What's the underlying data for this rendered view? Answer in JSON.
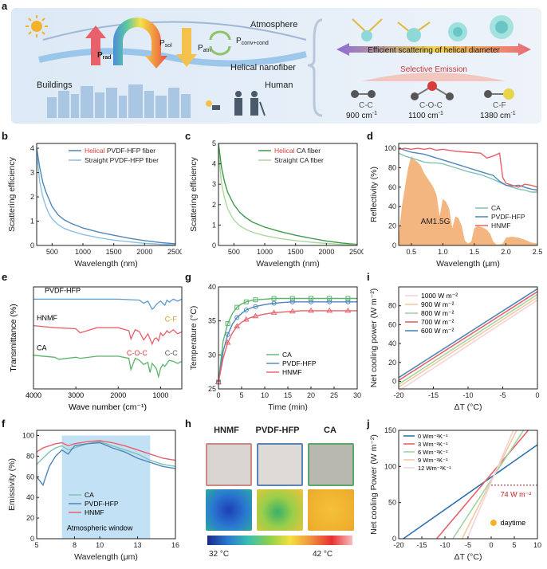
{
  "panel_labels": {
    "a": "a",
    "b": "b",
    "c": "c",
    "d": "d",
    "e": "e",
    "f": "f",
    "g": "g",
    "h": "h",
    "i": "i",
    "j": "j"
  },
  "panel_a": {
    "atmosphere": "Atmosphere",
    "p_rad": "P",
    "p_rad_sub": "rad",
    "p_sol": "P",
    "p_sol_sub": "sol",
    "p_atm": "P",
    "p_atm_sub": "atm",
    "p_conv": "P",
    "p_conv_sub": "conv+cond",
    "helical_nanofiber": "Helical nanofiber",
    "buildings": "Buildings",
    "human": "Human",
    "efficient_scattering": "Efficient scattering of helical diameter",
    "selective_emission": "Selective Emission",
    "bond_cc": "C-C",
    "bond_coc": "C-O-C",
    "bond_cf": "C-F",
    "wn_cc": "900 cm",
    "wn_coc": "1100 cm",
    "wn_cf": "1380 cm",
    "wn_sup": "-1",
    "colors": {
      "bg": "#e8f0f8",
      "arrow_red": "#e8606a",
      "arrow_yellow": "#f4c24c",
      "green": "#8fc36a",
      "text": "#1c1c1c"
    }
  },
  "chart_b": {
    "type": "line",
    "xlabel": "Wavelength (nm)",
    "ylabel": "Scattering efficiency",
    "xticks": [
      "500",
      "1000",
      "1500",
      "2000",
      "2500"
    ],
    "yticks": [
      "0",
      "1",
      "2",
      "3",
      "4"
    ],
    "xlim": [
      250,
      2500
    ],
    "ylim": [
      0,
      4.2
    ],
    "legend": [
      {
        "prefix": "Helical",
        "text": " PVDF-HFP fiber",
        "color": "#4e86b8"
      },
      {
        "prefix": "",
        "text": "Straight PVDF-HFP fiber",
        "color": "#8dbfe0"
      }
    ],
    "series": [
      {
        "name": "Helical PVDF-HFP fiber",
        "color": "#4e86b8",
        "x": [
          250,
          300,
          350,
          400,
          450,
          500,
          600,
          700,
          800,
          1000,
          1250,
          1500,
          1750,
          2000,
          2250,
          2500
        ],
        "y": [
          4.0,
          3.2,
          2.6,
          2.2,
          1.9,
          1.6,
          1.25,
          1.05,
          0.92,
          0.72,
          0.55,
          0.42,
          0.3,
          0.2,
          0.12,
          0.07
        ]
      },
      {
        "name": "Straight PVDF-HFP fiber",
        "color": "#8dbfe0",
        "x": [
          250,
          300,
          350,
          400,
          450,
          500,
          600,
          700,
          800,
          1000,
          1250,
          1500,
          1750,
          2000,
          2250,
          2500
        ],
        "y": [
          3.8,
          2.6,
          2.0,
          1.6,
          1.3,
          1.1,
          0.85,
          0.7,
          0.6,
          0.45,
          0.32,
          0.22,
          0.15,
          0.09,
          0.05,
          0.03
        ]
      }
    ]
  },
  "chart_c": {
    "type": "line",
    "xlabel": "Wavelength (nm)",
    "ylabel": "Scattering efficiency",
    "xticks": [
      "500",
      "1000",
      "1500",
      "2000",
      "2500"
    ],
    "yticks": [
      "0",
      "1",
      "2",
      "3",
      "4",
      "5"
    ],
    "xlim": [
      250,
      2500
    ],
    "ylim": [
      0,
      5
    ],
    "legend": [
      {
        "prefix": "Helical",
        "text": " CA fiber",
        "color": "#3d9a4a"
      },
      {
        "prefix": "",
        "text": "Straight CA fiber",
        "color": "#a8d89a"
      }
    ],
    "series": [
      {
        "name": "Helical CA fiber",
        "color": "#3d9a4a",
        "x": [
          250,
          300,
          350,
          400,
          450,
          500,
          600,
          700,
          800,
          1000,
          1250,
          1500,
          1750,
          2000,
          2250,
          2500
        ],
        "y": [
          5.0,
          3.8,
          3.1,
          2.6,
          2.3,
          2.0,
          1.6,
          1.35,
          1.15,
          0.9,
          0.68,
          0.5,
          0.35,
          0.22,
          0.12,
          0.05
        ]
      },
      {
        "name": "Straight CA fiber",
        "color": "#a8d89a",
        "x": [
          250,
          300,
          350,
          400,
          450,
          500,
          600,
          700,
          800,
          1000,
          1250,
          1500,
          1750,
          2000,
          2250,
          2500
        ],
        "y": [
          4.6,
          3.0,
          2.3,
          1.8,
          1.5,
          1.25,
          0.95,
          0.78,
          0.65,
          0.48,
          0.34,
          0.24,
          0.16,
          0.1,
          0.05,
          0.02
        ]
      }
    ]
  },
  "chart_d": {
    "type": "line",
    "xlabel": "Wavelength (μm)",
    "ylabel": "Reflectivity (%)",
    "xticks": [
      "0.5",
      "1.0",
      "1.5",
      "2.0",
      "2.5"
    ],
    "yticks": [
      "0",
      "20",
      "40",
      "60",
      "80",
      "100"
    ],
    "xlim": [
      0.3,
      2.5
    ],
    "ylim": [
      0,
      105
    ],
    "annotation": "AM1.5G",
    "legend": [
      "CA",
      "PVDF-HFP",
      "HNMF"
    ],
    "solar_color": "#f2a96a",
    "solar": {
      "x": [
        0.3,
        0.35,
        0.4,
        0.45,
        0.5,
        0.55,
        0.6,
        0.65,
        0.7,
        0.75,
        0.8,
        0.85,
        0.9,
        0.95,
        1.0,
        1.05,
        1.1,
        1.15,
        1.2,
        1.25,
        1.3,
        1.35,
        1.4,
        1.45,
        1.5,
        1.55,
        1.6,
        1.65,
        1.7,
        1.75,
        1.8,
        1.85,
        1.9,
        1.95,
        2.0,
        2.1,
        2.2,
        2.3,
        2.4,
        2.5
      ],
      "y": [
        10,
        40,
        60,
        80,
        92,
        88,
        86,
        82,
        75,
        70,
        65,
        60,
        52,
        30,
        48,
        45,
        38,
        18,
        30,
        28,
        20,
        5,
        2,
        4,
        18,
        20,
        19,
        18,
        16,
        12,
        4,
        1,
        1,
        2,
        8,
        9,
        8,
        6,
        3,
        2
      ]
    },
    "series": [
      {
        "name": "CA",
        "color": "#7fc2b7",
        "x": [
          0.3,
          0.4,
          0.5,
          0.6,
          0.7,
          0.8,
          0.9,
          1.0,
          1.2,
          1.4,
          1.6,
          1.8,
          1.9,
          2.0,
          2.1,
          2.2,
          2.3,
          2.4,
          2.5
        ],
        "y": [
          95,
          92,
          90,
          88,
          86,
          85,
          85,
          84,
          80,
          76,
          73,
          68,
          65,
          62,
          60,
          58,
          57,
          55,
          55
        ]
      },
      {
        "name": "PVDF-HFP",
        "color": "#4e86b8",
        "x": [
          0.3,
          0.4,
          0.5,
          0.6,
          0.7,
          0.8,
          0.9,
          1.0,
          1.2,
          1.4,
          1.6,
          1.8,
          1.9,
          2.0,
          2.1,
          2.2,
          2.3,
          2.4,
          2.5
        ],
        "y": [
          100,
          98,
          96,
          95,
          94,
          92,
          90,
          88,
          84,
          80,
          76,
          72,
          66,
          62,
          61,
          62,
          60,
          58,
          57
        ]
      },
      {
        "name": "HNMF",
        "color": "#e8606a",
        "x": [
          0.3,
          0.4,
          0.5,
          0.6,
          0.7,
          0.8,
          0.9,
          1.0,
          1.2,
          1.4,
          1.6,
          1.7,
          1.8,
          1.9,
          1.95,
          2.0,
          2.1,
          2.2,
          2.3,
          2.4,
          2.5
        ],
        "y": [
          99,
          100,
          99,
          100,
          99,
          100,
          98,
          99,
          97,
          96,
          95,
          90,
          92,
          95,
          70,
          64,
          62,
          60,
          63,
          62,
          60
        ]
      }
    ]
  },
  "chart_e": {
    "type": "line",
    "xlabel": "Wave number (cm⁻¹)",
    "ylabel": "Transmittance (%)",
    "xticks": [
      "4000",
      "3000",
      "2000",
      "1000"
    ],
    "labels": {
      "pvdf": "PVDF-HFP",
      "hnmf": "HNMF",
      "ca": "CA",
      "cf": "C-F",
      "coc": "C-O-C",
      "cc": "C-C"
    },
    "series": [
      {
        "name": "PVDF-HFP",
        "color": "#5b9bd0",
        "x": [
          4000,
          3500,
          3000,
          2500,
          2000,
          1500,
          1400,
          1300,
          1200,
          1150,
          1100,
          1000,
          900,
          880,
          850,
          800,
          700,
          600,
          500
        ],
        "y": [
          0.88,
          0.88,
          0.88,
          0.88,
          0.88,
          0.87,
          0.84,
          0.86,
          0.78,
          0.8,
          0.83,
          0.86,
          0.82,
          0.84,
          0.87,
          0.85,
          0.88,
          0.86,
          0.88
        ]
      },
      {
        "name": "HNMF",
        "color": "#e8606a",
        "x": [
          4000,
          3500,
          3000,
          2900,
          2500,
          2000,
          1750,
          1700,
          1600,
          1500,
          1400,
          1300,
          1200,
          1150,
          1100,
          1050,
          1000,
          950,
          900,
          850,
          800,
          700,
          600,
          500
        ],
        "y": [
          0.62,
          0.6,
          0.59,
          0.55,
          0.6,
          0.6,
          0.57,
          0.49,
          0.58,
          0.56,
          0.48,
          0.54,
          0.44,
          0.49,
          0.5,
          0.47,
          0.55,
          0.52,
          0.54,
          0.57,
          0.55,
          0.58,
          0.54,
          0.56
        ]
      },
      {
        "name": "CA",
        "color": "#5ab46c",
        "x": [
          4000,
          3500,
          3400,
          3000,
          2900,
          2500,
          2000,
          1750,
          1700,
          1600,
          1500,
          1400,
          1300,
          1250,
          1200,
          1100,
          1050,
          1000,
          950,
          900,
          800,
          700,
          600,
          500
        ],
        "y": [
          0.33,
          0.31,
          0.29,
          0.31,
          0.3,
          0.32,
          0.32,
          0.3,
          0.19,
          0.3,
          0.28,
          0.24,
          0.26,
          0.16,
          0.25,
          0.2,
          0.12,
          0.2,
          0.24,
          0.22,
          0.28,
          0.27,
          0.25,
          0.27
        ]
      }
    ]
  },
  "chart_f": {
    "type": "line",
    "xlabel": "Wavelength (μm)",
    "ylabel": "Emissivity (%)",
    "xticks": [
      "5",
      "8",
      "10",
      "13",
      "16"
    ],
    "yticks": [
      "0",
      "20",
      "40",
      "60",
      "80",
      "100"
    ],
    "xlim": [
      5,
      16
    ],
    "ylim": [
      0,
      105
    ],
    "annotation": "Atmospheric window",
    "legend": [
      "CA",
      "PVDF-HFP",
      "HNMF"
    ],
    "series": [
      {
        "name": "CA",
        "color": "#7fc2b7",
        "x": [
          5,
          5.5,
          6,
          6.5,
          7,
          7.5,
          8,
          9,
          10,
          11,
          12,
          13,
          14,
          15,
          16
        ],
        "y": [
          72,
          78,
          84,
          88,
          90,
          86,
          88,
          92,
          94,
          90,
          86,
          82,
          76,
          72,
          70
        ]
      },
      {
        "name": "PVDF-HFP",
        "color": "#4e86b8",
        "x": [
          5,
          5.5,
          6,
          6.5,
          7,
          7.5,
          8,
          9,
          10,
          11,
          12,
          13,
          14,
          15,
          16
        ],
        "y": [
          60,
          52,
          70,
          80,
          86,
          82,
          90,
          92,
          93,
          88,
          84,
          78,
          74,
          70,
          68
        ]
      },
      {
        "name": "HNMF",
        "color": "#e8606a",
        "x": [
          5,
          5.5,
          6,
          6.5,
          7,
          7.5,
          8,
          9,
          10,
          11,
          12,
          13,
          14,
          15,
          16
        ],
        "y": [
          84,
          88,
          90,
          92,
          93,
          90,
          92,
          94,
          95,
          93,
          90,
          86,
          82,
          78,
          76
        ]
      }
    ]
  },
  "chart_g": {
    "type": "line",
    "xlabel": "Time (min)",
    "ylabel": "Temperature (°C)",
    "xticks": [
      "0",
      "5",
      "10",
      "15",
      "20",
      "25",
      "30"
    ],
    "yticks": [
      "25",
      "30",
      "35",
      "40"
    ],
    "xlim": [
      0,
      30
    ],
    "ylim": [
      25,
      40
    ],
    "legend": [
      "CA",
      "PVDF-HFP",
      "HNMF"
    ],
    "series": [
      {
        "name": "CA",
        "color": "#5ab46c",
        "x": [
          0,
          1,
          2,
          3,
          4,
          5,
          6,
          7,
          8,
          10,
          12,
          14,
          16,
          18,
          20,
          22,
          24,
          26,
          28,
          30
        ],
        "y": [
          26,
          32,
          34.6,
          36.1,
          37,
          37.5,
          37.8,
          38,
          38.1,
          38.2,
          38.3,
          38.3,
          38.3,
          38.3,
          38.3,
          38.3,
          38.3,
          38.3,
          38.3,
          38.3
        ]
      },
      {
        "name": "PVDF-HFP",
        "color": "#4e86b8",
        "x": [
          0,
          1,
          2,
          3,
          4,
          5,
          6,
          7,
          8,
          10,
          12,
          14,
          16,
          18,
          20,
          22,
          24,
          26,
          28,
          30
        ],
        "y": [
          26,
          30.5,
          33,
          34.5,
          35.5,
          36.1,
          36.6,
          36.9,
          37.1,
          37.4,
          37.6,
          37.7,
          37.8,
          37.8,
          37.8,
          37.8,
          37.8,
          37.8,
          37.8,
          37.8
        ]
      },
      {
        "name": "HNMF",
        "color": "#e8606a",
        "x": [
          0,
          1,
          2,
          3,
          4,
          5,
          6,
          7,
          8,
          10,
          12,
          14,
          16,
          18,
          20,
          22,
          24,
          26,
          28,
          30
        ],
        "y": [
          26,
          29.5,
          31.8,
          33.2,
          34.2,
          34.8,
          35.2,
          35.5,
          35.7,
          36,
          36.2,
          36.3,
          36.4,
          36.5,
          36.5,
          36.5,
          36.5,
          36.5,
          36.5,
          36.5
        ]
      }
    ]
  },
  "panel_h": {
    "labels": [
      "HNMF",
      "PVDF-HFP",
      "CA"
    ],
    "scale_min": "32 °C",
    "scale_max": "42 °C"
  },
  "chart_i": {
    "type": "line",
    "xlabel": "ΔT (°C)",
    "ylabel": "Net cooling power (W m⁻²)",
    "xticks": [
      "-20",
      "-15",
      "-10",
      "-5",
      "0"
    ],
    "yticks": [
      "0",
      "20",
      "40",
      "60",
      "80"
    ],
    "xlim": [
      -20,
      0
    ],
    "ylim": [
      -8,
      100
    ],
    "legend": [
      "1000 W m⁻²",
      "900 W m⁻²",
      "800 W m⁻²",
      "700 W m⁻²",
      "600 W m⁻²"
    ],
    "series": [
      {
        "name": "1000 W m⁻²",
        "color": "#f2d3d8",
        "x": [
          -20,
          0
        ],
        "y": [
          -10,
          86
        ]
      },
      {
        "name": "900 W m⁻²",
        "color": "#f2c9a0",
        "x": [
          -20,
          0
        ],
        "y": [
          -6,
          89
        ]
      },
      {
        "name": "800 W m⁻²",
        "color": "#9fd3a0",
        "x": [
          -20,
          0
        ],
        "y": [
          -3,
          92
        ]
      },
      {
        "name": "700 W m⁻²",
        "color": "#e8606a",
        "x": [
          -20,
          0
        ],
        "y": [
          1,
          95
        ]
      },
      {
        "name": "600 W m⁻²",
        "color": "#4e86b8",
        "x": [
          -20,
          0
        ],
        "y": [
          4,
          98
        ]
      }
    ]
  },
  "chart_j": {
    "type": "line",
    "xlabel": "ΔT (°C)",
    "ylabel": "Net cooling Power (W m⁻²)",
    "xticks": [
      "-20",
      "-15",
      "-10",
      "-5",
      "0",
      "5",
      "10"
    ],
    "yticks": [
      "0",
      "50",
      "100",
      "150"
    ],
    "xlim": [
      -20,
      10
    ],
    "ylim": [
      0,
      150
    ],
    "annotation": "74 W m⁻²",
    "daytime": "daytime",
    "legend": [
      "0 Wm⁻²K⁻¹",
      "3 Wm⁻²K⁻¹",
      "6 Wm⁻²K⁻¹",
      "9 Wm⁻²K⁻¹",
      "12 Wm⁻²K⁻¹"
    ],
    "series": [
      {
        "name": "0 Wm⁻²K⁻¹",
        "color": "#2f6fb0",
        "x": [
          -19,
          10
        ],
        "y": [
          0,
          130
        ]
      },
      {
        "name": "3 Wm⁻²K⁻¹",
        "color": "#e8606a",
        "x": [
          -11.8,
          8
        ],
        "y": [
          0,
          150
        ]
      },
      {
        "name": "6 Wm⁻²K⁻¹",
        "color": "#9fd3a0",
        "x": [
          -8.3,
          7
        ],
        "y": [
          0,
          150
        ]
      },
      {
        "name": "9 Wm⁻²K⁻¹",
        "color": "#f2c9a0",
        "x": [
          -6.3,
          5.5
        ],
        "y": [
          0,
          150
        ]
      },
      {
        "name": "12 Wm⁻²K⁻¹",
        "color": "#f2d3d8",
        "x": [
          -5.2,
          4.8
        ],
        "y": [
          0,
          150
        ]
      }
    ]
  }
}
